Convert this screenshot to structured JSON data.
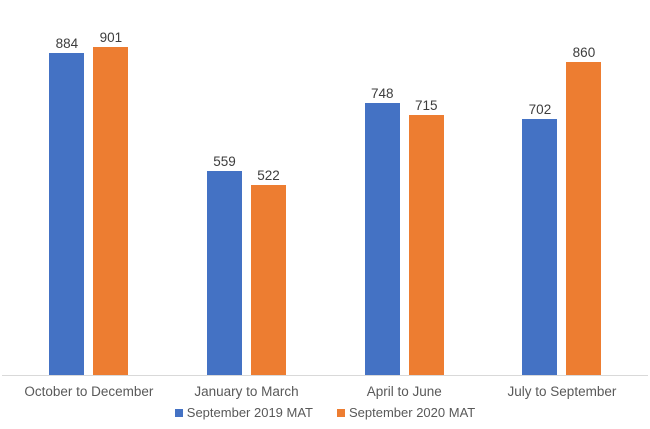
{
  "chart_data": {
    "type": "bar",
    "categories": [
      "October to December",
      "January to March",
      "April to June",
      "July to September"
    ],
    "series": [
      {
        "name": "September 2019 MAT",
        "color": "#4472C4",
        "values": [
          884,
          559,
          748,
          702
        ]
      },
      {
        "name": "September 2020 MAT",
        "color": "#ED7D31",
        "values": [
          901,
          522,
          715,
          860
        ]
      }
    ],
    "title": "",
    "xlabel": "",
    "ylabel": "",
    "ylim": [
      0,
      1000
    ],
    "grid": false,
    "legend_position": "bottom",
    "data_labels": true,
    "axis_line_color": "#d9d9d9",
    "label_color": "#3d3d3d",
    "category_color": "#595959"
  }
}
